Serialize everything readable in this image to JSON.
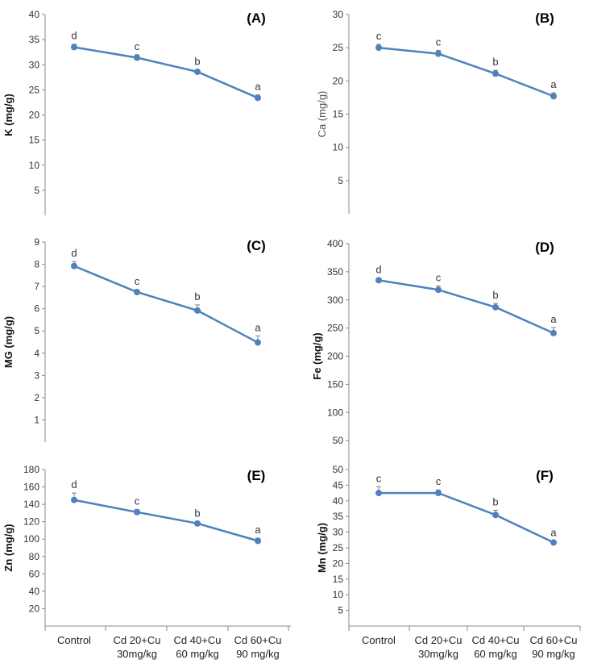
{
  "chart_data": [
    {
      "type": "line",
      "panel": "(A)",
      "ylabel": "K (mg/g)",
      "ylim": [
        0,
        40
      ],
      "yticks": [
        "5",
        "10",
        "15",
        "20",
        "25",
        "30",
        "35",
        "40"
      ],
      "categories": [
        "Control",
        "Cd 20+Cu 30mg/kg",
        "Cd 40+Cu 60 mg/kg",
        "Cd 60+Cu 90 mg/kg"
      ],
      "values": [
        33.5,
        31.4,
        28.6,
        23.4
      ],
      "errors": [
        0.6,
        0.6,
        0.4,
        0.6
      ],
      "letters": [
        "d",
        "c",
        "b",
        "a"
      ],
      "color": "#4f81bd"
    },
    {
      "type": "line",
      "panel": "(B)",
      "ylabel": "Ca (mg/g)",
      "ylim": [
        0,
        30
      ],
      "yticks": [
        "5",
        "10",
        "15",
        "20",
        "25",
        "30"
      ],
      "categories": [
        "Control",
        "Cd 20+Cu 30mg/kg",
        "Cd 40+Cu 60 mg/kg",
        "Cd 60+Cu 90 mg/kg"
      ],
      "values": [
        25.0,
        24.1,
        21.1,
        17.7
      ],
      "errors": [
        0.5,
        0.5,
        0.5,
        0.5
      ],
      "letters": [
        "c",
        "c",
        "b",
        "a"
      ],
      "color": "#4f81bd"
    },
    {
      "type": "line",
      "panel": "(C)",
      "ylabel": "MG (mg/g)",
      "ylim": [
        0,
        9
      ],
      "yticks": [
        "1",
        "2",
        "3",
        "4",
        "5",
        "6",
        "7",
        "8",
        "9"
      ],
      "categories": [
        "Control",
        "Cd 20+Cu 30mg/kg",
        "Cd 40+Cu 60 mg/kg",
        "Cd 60+Cu 90 mg/kg"
      ],
      "values": [
        7.92,
        6.75,
        5.92,
        4.48
      ],
      "errors": [
        0.2,
        0.1,
        0.25,
        0.3
      ],
      "letters": [
        "d",
        "c",
        "b",
        "a"
      ],
      "color": "#4f81bd"
    },
    {
      "type": "line",
      "panel": "(D)",
      "ylabel": "Fe (mg/g)",
      "ylim": [
        0,
        400
      ],
      "yticks": [
        "50",
        "100",
        "150",
        "200",
        "250",
        "300",
        "350",
        "400"
      ],
      "categories": [
        "Control",
        "Cd 20+Cu 30mg/kg",
        "Cd 40+Cu 60 mg/kg",
        "Cd 60+Cu 90 mg/kg"
      ],
      "values": [
        335,
        318,
        287,
        241
      ],
      "errors": [
        4,
        7,
        7,
        10
      ],
      "letters": [
        "d",
        "c",
        "b",
        "a"
      ],
      "color": "#4f81bd"
    },
    {
      "type": "line",
      "panel": "(E)",
      "ylabel": "Zn (mg/g)",
      "ylim": [
        0,
        180
      ],
      "yticks": [
        "20",
        "40",
        "60",
        "80",
        "100",
        "120",
        "140",
        "160",
        "180"
      ],
      "categories": [
        "Control",
        "Cd 20+Cu 30mg/kg",
        "Cd 40+Cu 60 mg/kg",
        "Cd 60+Cu 90 mg/kg"
      ],
      "values": [
        145,
        131,
        118,
        98
      ],
      "errors": [
        8,
        3,
        2,
        3
      ],
      "letters": [
        "d",
        "c",
        "b",
        "a"
      ],
      "color": "#4f81bd"
    },
    {
      "type": "line",
      "panel": "(F)",
      "ylabel": "Mn (mg/g)",
      "ylim": [
        0,
        50
      ],
      "yticks": [
        "5",
        "10",
        "15",
        "20",
        "25",
        "30",
        "35",
        "40",
        "45",
        "50"
      ],
      "categories": [
        "Control",
        "Cd 20+Cu 30mg/kg",
        "Cd 40+Cu 60 mg/kg",
        "Cd 60+Cu 90 mg/kg"
      ],
      "values": [
        42.5,
        42.5,
        35.5,
        26.7
      ],
      "errors": [
        2,
        1,
        1.5,
        0.5
      ],
      "letters": [
        "c",
        "c",
        "b",
        "a"
      ],
      "color": "#4f81bd"
    }
  ],
  "x_categories": [
    [
      "Control"
    ],
    [
      "Cd 20+Cu",
      "30mg/kg"
    ],
    [
      "Cd 40+Cu",
      "60 mg/kg"
    ],
    [
      "Cd 60+Cu",
      "90 mg/kg"
    ]
  ]
}
